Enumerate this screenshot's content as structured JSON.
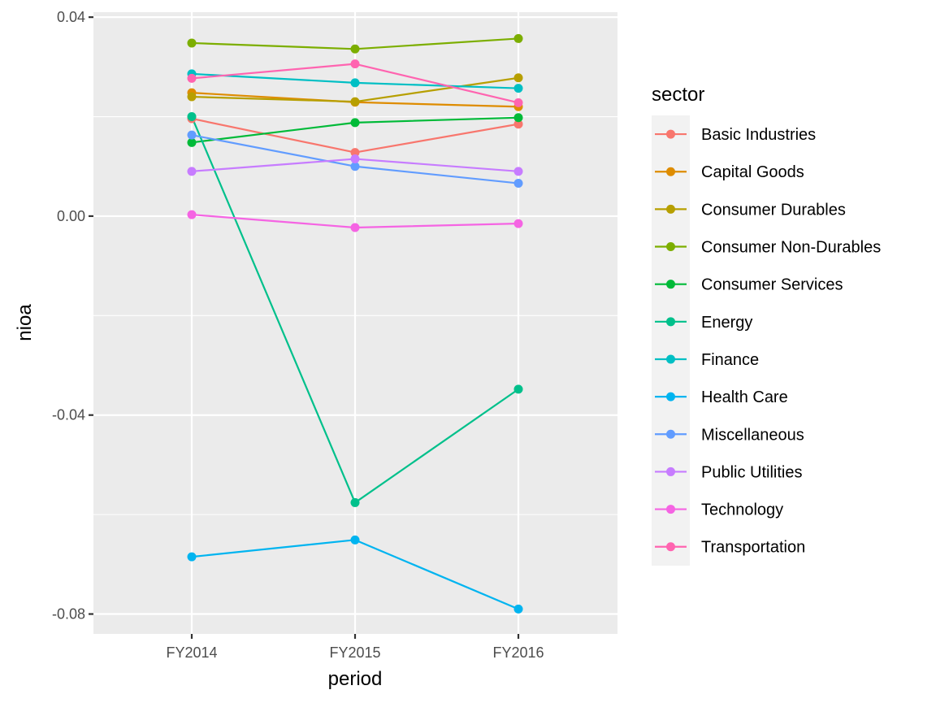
{
  "chart_data": {
    "type": "line",
    "xlabel": "period",
    "ylabel": "nioa",
    "categories": [
      "FY2014",
      "FY2015",
      "FY2016"
    ],
    "ylim": [
      -0.084,
      0.041
    ],
    "yticks": [
      -0.08,
      -0.04,
      0.0,
      0.04
    ],
    "ytick_labels": [
      "-0.08",
      "-0.04",
      "0.00",
      "0.04"
    ],
    "grid": true,
    "legend": {
      "title": "sector",
      "position": "right"
    },
    "series": [
      {
        "name": "Basic Industries",
        "color": "#F8766D",
        "values": [
          0.0196,
          0.0128,
          0.0185
        ]
      },
      {
        "name": "Capital Goods",
        "color": "#DE8C00",
        "values": [
          0.0248,
          0.0229,
          0.022
        ]
      },
      {
        "name": "Consumer Durables",
        "color": "#B79F00",
        "values": [
          0.024,
          0.023,
          0.0278
        ]
      },
      {
        "name": "Consumer Non-Durables",
        "color": "#7CAE00",
        "values": [
          0.0348,
          0.0336,
          0.0357
        ]
      },
      {
        "name": "Consumer Services",
        "color": "#00BA38",
        "values": [
          0.0148,
          0.0188,
          0.0198
        ]
      },
      {
        "name": "Energy",
        "color": "#00C08B",
        "values": [
          0.02,
          -0.0576,
          -0.0348
        ]
      },
      {
        "name": "Finance",
        "color": "#00BFC4",
        "values": [
          0.0286,
          0.0268,
          0.0257
        ]
      },
      {
        "name": "Health Care",
        "color": "#00B4F0",
        "values": [
          -0.0685,
          -0.0651,
          -0.079
        ]
      },
      {
        "name": "Miscellaneous",
        "color": "#619CFF",
        "values": [
          0.0163,
          0.01,
          0.0066
        ]
      },
      {
        "name": "Public Utilities",
        "color": "#C77CFF",
        "values": [
          0.009,
          0.0115,
          0.009
        ]
      },
      {
        "name": "Technology",
        "color": "#F564E3",
        "values": [
          0.0003,
          -0.0023,
          -0.0015
        ]
      },
      {
        "name": "Transportation",
        "color": "#FF64B0",
        "values": [
          0.0277,
          0.0306,
          0.0228
        ]
      }
    ]
  }
}
